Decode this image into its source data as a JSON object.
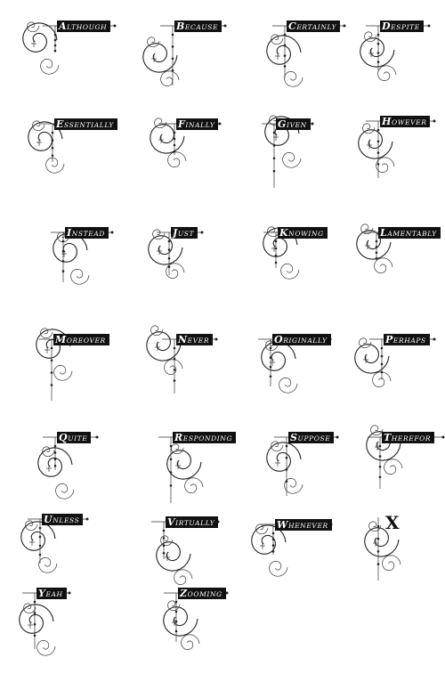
{
  "initials": [
    {
      "letter": "A",
      "rest": "lthough"
    },
    {
      "letter": "B",
      "rest": "ecause"
    },
    {
      "letter": "C",
      "rest": "ertainly"
    },
    {
      "letter": "D",
      "rest": "espite"
    },
    {
      "letter": "E",
      "rest": "ssentially"
    },
    {
      "letter": "F",
      "rest": "inally"
    },
    {
      "letter": "G",
      "rest": "iven"
    },
    {
      "letter": "H",
      "rest": "owever"
    },
    {
      "letter": "I",
      "rest": "nstead"
    },
    {
      "letter": "J",
      "rest": "ust"
    },
    {
      "letter": "K",
      "rest": "nowing"
    },
    {
      "letter": "L",
      "rest": "amentably"
    },
    {
      "letter": "M",
      "rest": "oreover"
    },
    {
      "letter": "N",
      "rest": "ever"
    },
    {
      "letter": "O",
      "rest": "riginally"
    },
    {
      "letter": "P",
      "rest": "erhaps"
    },
    {
      "letter": "Q",
      "rest": "uite"
    },
    {
      "letter": "R",
      "rest": "esponding"
    },
    {
      "letter": "S",
      "rest": "uppose"
    },
    {
      "letter": "T",
      "rest": "herefor"
    },
    {
      "letter": "U",
      "rest": "nless"
    },
    {
      "letter": "V",
      "rest": "irtually"
    },
    {
      "letter": "W",
      "rest": "henever"
    },
    {
      "letter": "X",
      "rest": ""
    },
    {
      "letter": "Y",
      "rest": "eah"
    },
    {
      "letter": "Z",
      "rest": "ooming"
    }
  ],
  "colors": {
    "ink": "#111111",
    "paper": "#ffffff"
  }
}
